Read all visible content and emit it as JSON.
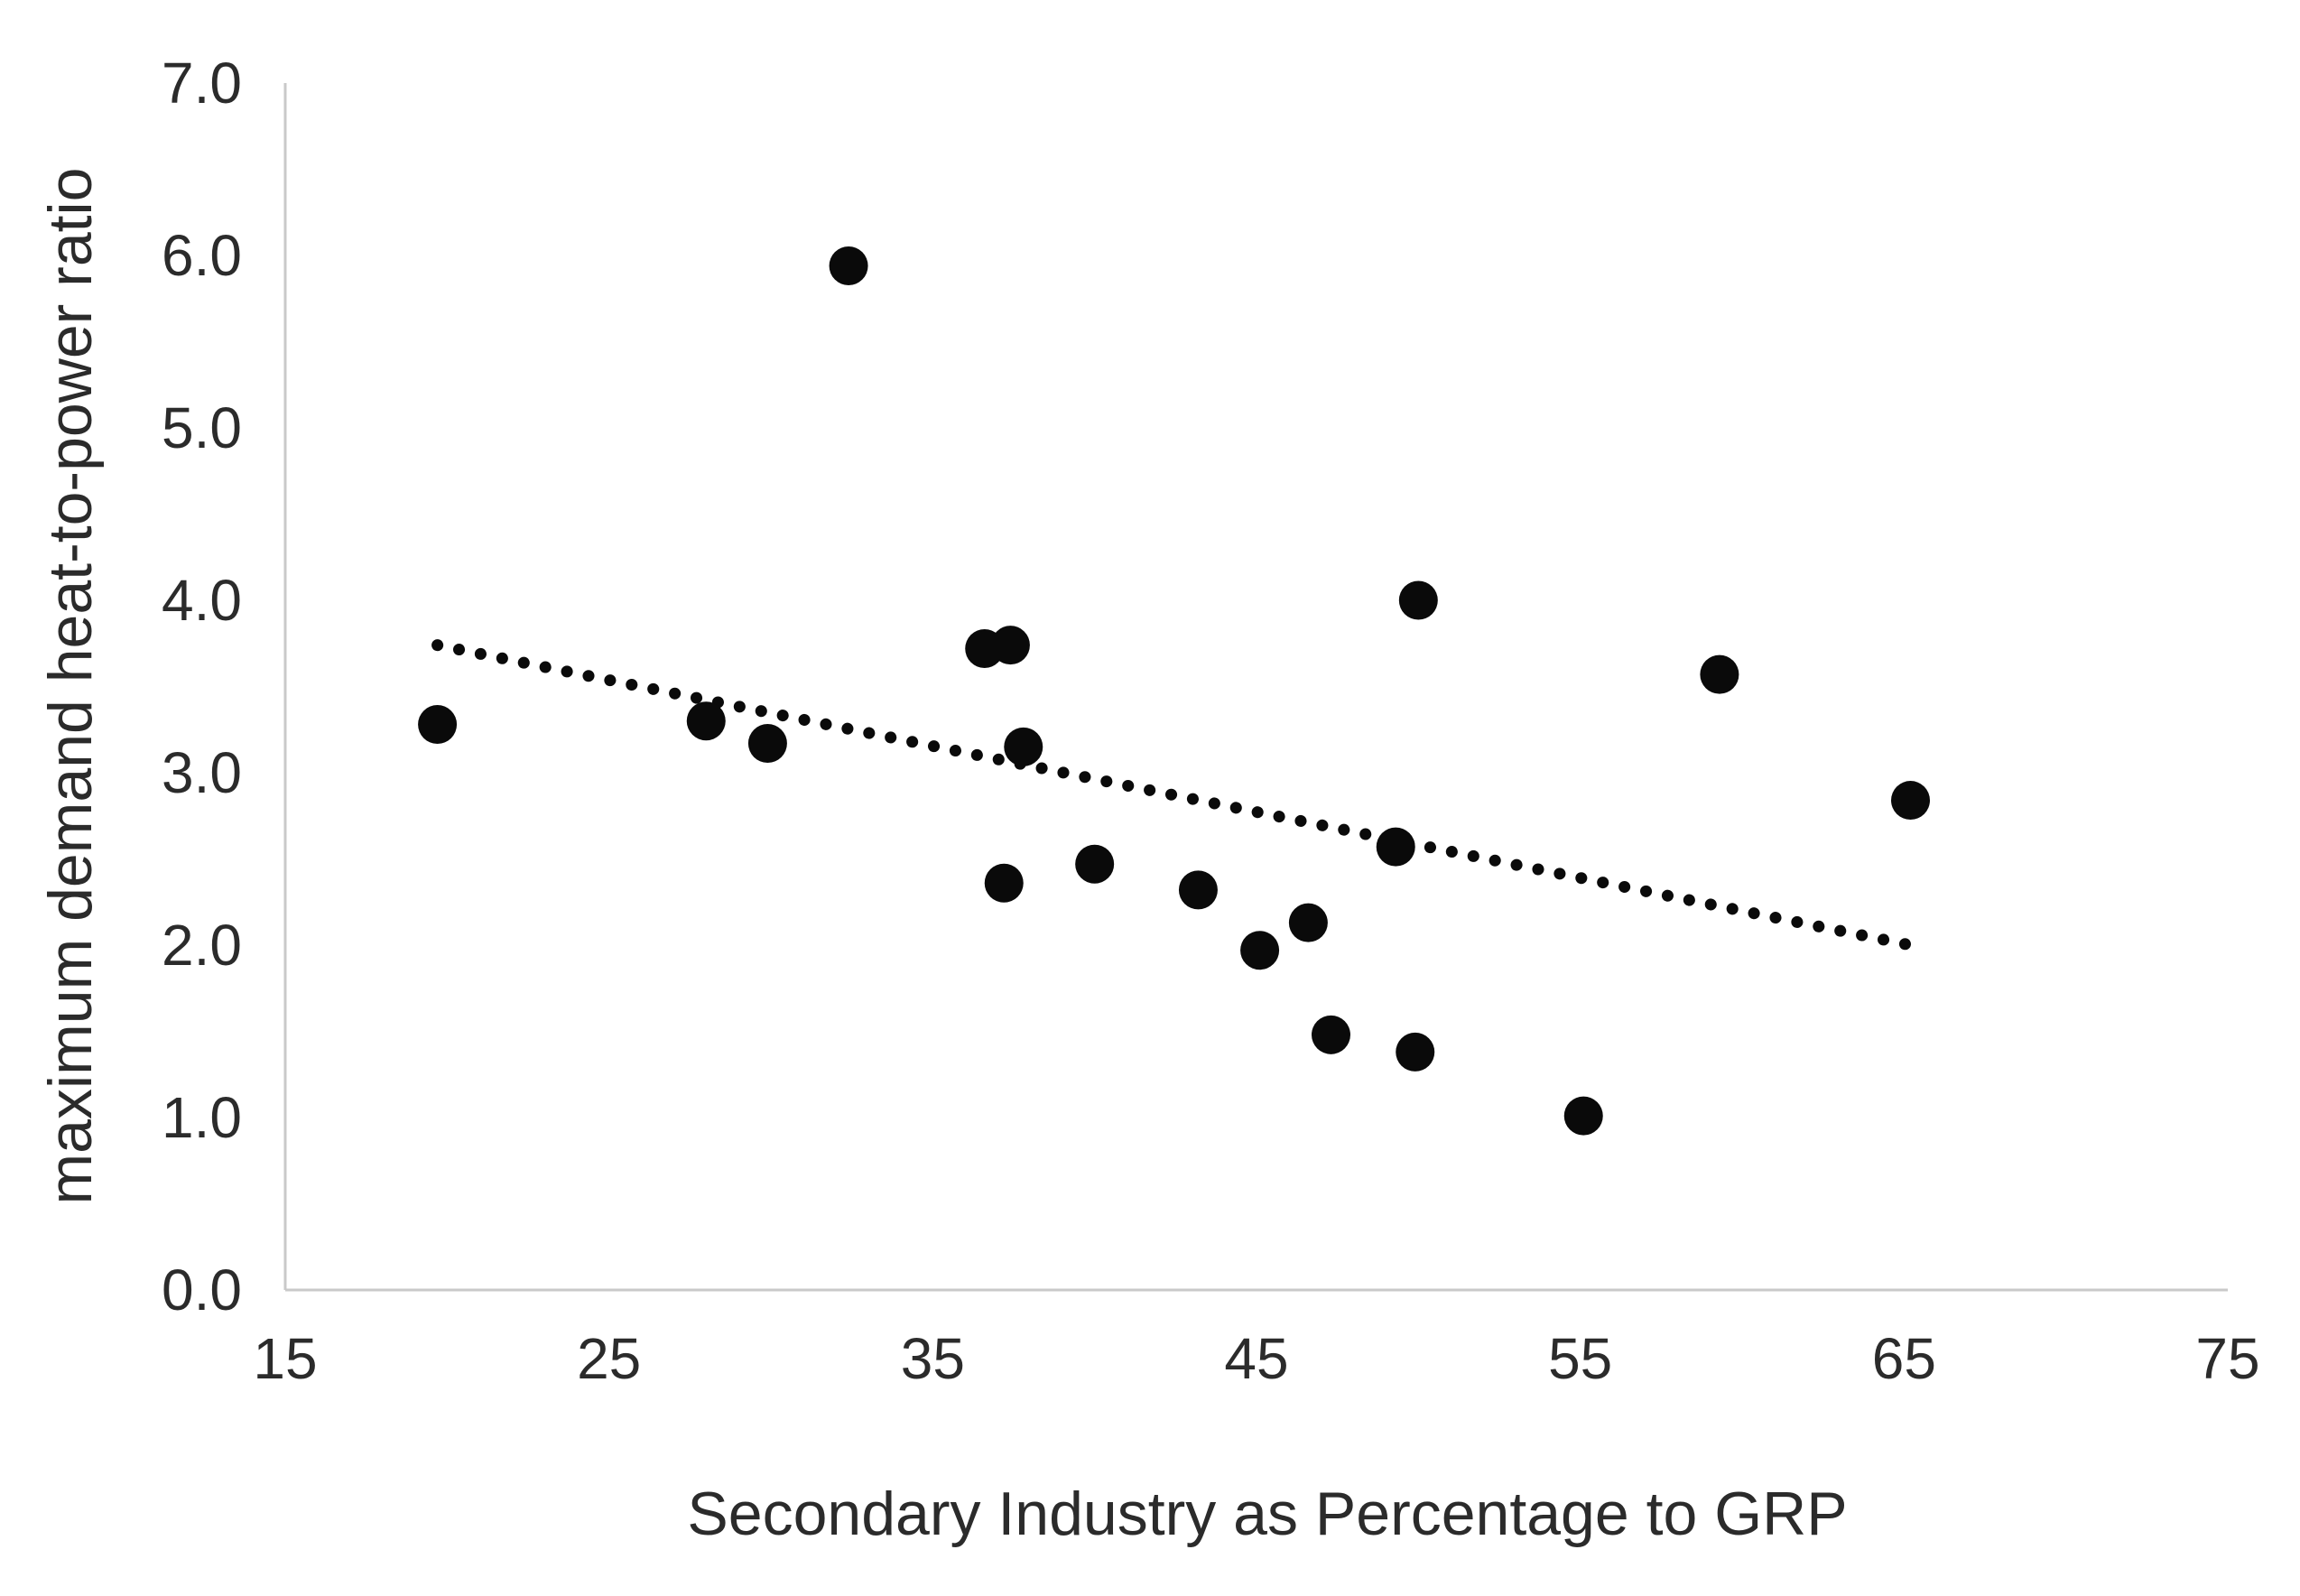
{
  "chart_data": {
    "type": "scatter",
    "title": "",
    "xlabel": "Secondary Industry as Percentage to GRP",
    "ylabel": "maximum demand heat-to-power ratio",
    "xlim": [
      15,
      75
    ],
    "ylim": [
      0.0,
      7.0
    ],
    "x_ticks": [
      15,
      25,
      35,
      45,
      55,
      65,
      75
    ],
    "y_ticks": [
      0.0,
      1.0,
      2.0,
      3.0,
      4.0,
      5.0,
      6.0,
      7.0
    ],
    "y_tick_labels": [
      "0.0",
      "1.0",
      "2.0",
      "3.0",
      "4.0",
      "5.0",
      "6.0",
      "7.0"
    ],
    "grid": false,
    "legend_position": "none",
    "series": [
      {
        "name": "observations",
        "type": "scatter",
        "marker": "circle",
        "color": "#0a0a0a",
        "points": [
          [
            19.7,
            3.28
          ],
          [
            28.0,
            3.3
          ],
          [
            29.9,
            3.17
          ],
          [
            32.4,
            5.94
          ],
          [
            36.6,
            3.72
          ],
          [
            37.4,
            3.74
          ],
          [
            37.2,
            2.36
          ],
          [
            37.8,
            3.15
          ],
          [
            40.0,
            2.47
          ],
          [
            43.2,
            2.32
          ],
          [
            45.1,
            1.97
          ],
          [
            46.6,
            2.13
          ],
          [
            47.3,
            1.48
          ],
          [
            49.3,
            2.57
          ],
          [
            49.9,
            1.38
          ],
          [
            50.0,
            4.0
          ],
          [
            55.1,
            1.01
          ],
          [
            59.3,
            3.57
          ],
          [
            65.2,
            2.84
          ]
        ]
      },
      {
        "name": "trendline",
        "type": "dotted-line",
        "color": "#0a0a0a",
        "points": [
          [
            19.7,
            3.74
          ],
          [
            65.2,
            2.0
          ]
        ]
      }
    ]
  },
  "colors": {
    "background": "#ffffff",
    "axis_line": "#c9c9c9",
    "tick_text": "#2b2b2b",
    "marker": "#0a0a0a"
  }
}
